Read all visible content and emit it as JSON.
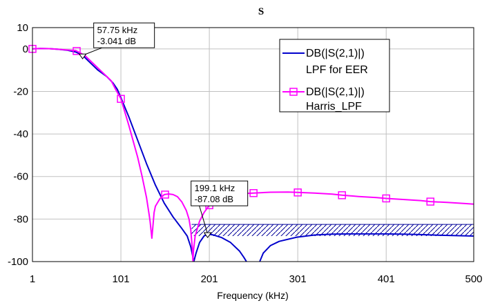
{
  "chart_data": {
    "type": "line",
    "title": "S",
    "xlabel": "Frequency (kHz)",
    "ylabel": "",
    "xlim": [
      1,
      500
    ],
    "ylim": [
      -100,
      10
    ],
    "x_ticks": [
      1,
      101,
      201,
      301,
      401,
      500
    ],
    "y_ticks": [
      10,
      0,
      -20,
      -40,
      -60,
      -80,
      -100
    ],
    "grid": true,
    "legend_position": "top-right",
    "series": [
      {
        "name": "DB(|S(2,1)|) LPF for EER",
        "legend_line1": "DB(|S(2,1)|)",
        "legend_line2": "LPF for EER",
        "color": "#0000cc",
        "marker": "none",
        "segments": [
          {
            "x": [
              1,
              10,
              20,
              30,
              40,
              50,
              57.75,
              65,
              75,
              85,
              92,
              97,
              101,
              110,
              120,
              130,
              140,
              150,
              160,
              170,
              176,
              180,
              183.5,
              186,
              190,
              195,
              199.1,
              205,
              215,
              225,
              235,
              240,
              243
            ],
            "y": [
              0,
              0.2,
              0.1,
              -0.2,
              -0.6,
              -1.5,
              -3.041,
              -6,
              -10,
              -13,
              -16,
              -19,
              -23,
              -32,
              -43,
              -54,
              -64,
              -72.5,
              -79,
              -84.5,
              -88,
              -93,
              -100,
              -96,
              -91,
              -88,
              -87.08,
              -87.4,
              -88.7,
              -91,
              -95,
              -98,
              -100
            ]
          },
          {
            "x": [
              258,
              262,
              270,
              280,
              300,
              320,
              340,
              360,
              380,
              400,
              420,
              440,
              460,
              480,
              500
            ],
            "y": [
              -100,
              -96,
              -92.5,
              -90.5,
              -88.5,
              -87.5,
              -87.1,
              -87,
              -87,
              -87,
              -87.1,
              -87.3,
              -87.6,
              -87.8,
              -88
            ]
          }
        ]
      },
      {
        "name": "DB(|S(2,1)|) Harris_LPF",
        "legend_line1": "DB(|S(2,1)|)",
        "legend_line2": "Harris_LPF",
        "color": "#ff00ff",
        "marker": "square",
        "segments": [
          {
            "x": [
              1,
              10,
              20,
              30,
              40,
              50,
              60,
              70,
              80,
              90,
              95,
              101,
              110,
              120,
              125,
              130,
              133,
              134,
              135,
              136,
              137.5,
              138.5,
              140,
              145,
              150,
              155,
              160,
              165,
              170,
              175,
              178,
              180,
              181,
              182,
              182.5,
              183,
              185,
              190,
              195,
              201,
              210,
              220,
              230,
              240,
              251,
              270,
              290,
              301,
              320,
              340,
              351,
              370,
              390,
              401,
              420,
              440,
              451,
              470,
              490,
              500
            ],
            "y": [
              0,
              0.2,
              0.1,
              -0.2,
              -0.5,
              -0.8,
              -3,
              -7,
              -11,
              -15,
              -19,
              -23.5,
              -36,
              -51,
              -60,
              -70,
              -78,
              -81,
              -85,
              -89,
              -82,
              -77,
              -74,
              -70.5,
              -68.5,
              -68.2,
              -68.5,
              -69.5,
              -72,
              -76,
              -80,
              -85,
              -90,
              -95,
              -100,
              -95,
              -88,
              -81,
              -77,
              -73.5,
              -71,
              -69.5,
              -68.5,
              -68,
              -67.8,
              -67.4,
              -67.3,
              -67.5,
              -67.8,
              -68.3,
              -68.8,
              -69.4,
              -69.9,
              -70.3,
              -70.8,
              -71.3,
              -71.8,
              -72.2,
              -72.7,
              -73
            ]
          }
        ],
        "markers_x": [
          1,
          51,
          101,
          151,
          201,
          251,
          301,
          351,
          401,
          451
        ],
        "markers_y": [
          0,
          -1,
          -23.5,
          -68.5,
          -73.5,
          -67.8,
          -67.5,
          -68.8,
          -70.3,
          -71.8
        ]
      }
    ],
    "annotations": [
      {
        "x": 57.75,
        "y": -3.041,
        "line1": "57.75 kHz",
        "line2": "-3.041 dB"
      },
      {
        "x": 199.1,
        "y": -87.08,
        "line1": "199.1 kHz",
        "line2": "-87.08 dB"
      }
    ],
    "hatched_region": {
      "x": [
        181,
        500
      ],
      "y": [
        -88,
        -82.5
      ],
      "color": "#000099"
    }
  }
}
